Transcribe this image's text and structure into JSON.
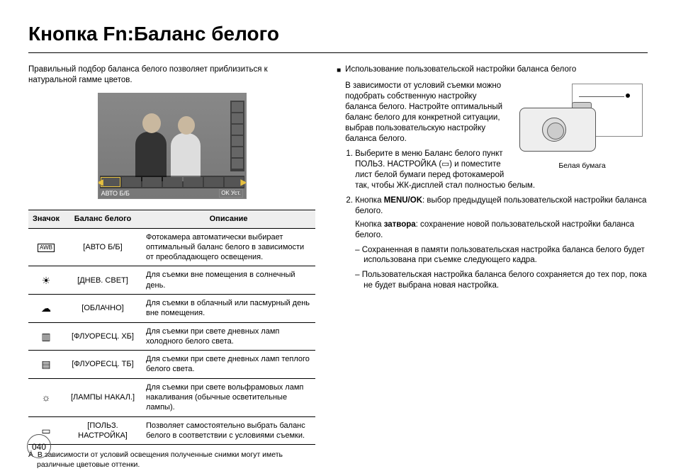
{
  "title": "Кнопка Fn:Баланс белого",
  "page_number": "040",
  "left": {
    "intro": "Правильный подбор баланса белого позволяет приблизиться к натуральной гамме цветов.",
    "preview_caption": "АВТО Б/Б",
    "preview_ok": "OK Уст.",
    "table": {
      "headers": {
        "icon": "Значок",
        "name": "Баланс белого",
        "desc": "Описание"
      },
      "rows": [
        {
          "icon": "AWB",
          "icon_class": "awb",
          "name": "[АВТО Б/Б]",
          "desc": "Фотокамера автоматически выбирает оптимальный баланс белого в зависимости от преобладающего освещения."
        },
        {
          "icon": "☀",
          "name": "[ДНЕВ. СВЕТ]",
          "desc": "Для съемки вне помещения в солнечный день."
        },
        {
          "icon": "☁",
          "name": "[ОБЛАЧНО]",
          "desc": "Для съемки в облачный или пасмурный день вне помещения."
        },
        {
          "icon": "▥",
          "name": "[ФЛУОРЕСЦ. ХБ]",
          "desc": "Для съемки при свете дневных ламп холодного белого света."
        },
        {
          "icon": "▤",
          "name": "[ФЛУОРЕСЦ. ТБ]",
          "desc": "Для съемки при свете дневных ламп теплого белого света."
        },
        {
          "icon": "☼",
          "name": "[ЛАМПЫ НАКАЛ.]",
          "desc": "Для съемки при свете вольфрамовых ламп накаливания (обычные осветительные лампы)."
        },
        {
          "icon": "▭",
          "name": "[ПОЛЬЗ. НАСТРОЙКА]",
          "desc": "Позволяет самостоятельно выбрать баланс белого в соответствии с условиями съемки."
        }
      ]
    },
    "footnote": "В зависимости от условий освещения полученные снимки могут иметь различные цветовые оттенки."
  },
  "right": {
    "subheading": "Использование пользовательской настройки баланса белого",
    "body1": "В зависимости от условий съемки можно подобрать собственную настройку баланса белого. Настройте оптимальный баланс белого для конкретной ситуации, выбрав пользовательскую настройку баланса белого.",
    "camera_caption": "Белая бумага",
    "step1_a": "Выберите в меню Баланс белого пункт ПОЛЬЗ. НАСТРОЙКА (",
    "step1_icon": "▭",
    "step1_b": ") и поместите лист белой бумаги перед фотокамерой так, чтобы ЖК-дисплей стал полностью белым.",
    "step2_a": "Кнопка ",
    "step2_menu": "MENU/OK",
    "step2_b": ": выбор предыдущей пользовательской настройки баланса белого.",
    "step2_c_a": "Кнопка ",
    "step2_shutter": "затвора",
    "step2_c_b": ": сохранение новой пользовательской настройки баланса белого.",
    "dash1": "Сохраненная в памяти  пользовательская настройка баланса белого будет использована при съемке следующего кадра.",
    "dash2": "Пользовательская настройка баланса белого сохраняется до тех пор, пока не будет выбрана новая настройка."
  }
}
